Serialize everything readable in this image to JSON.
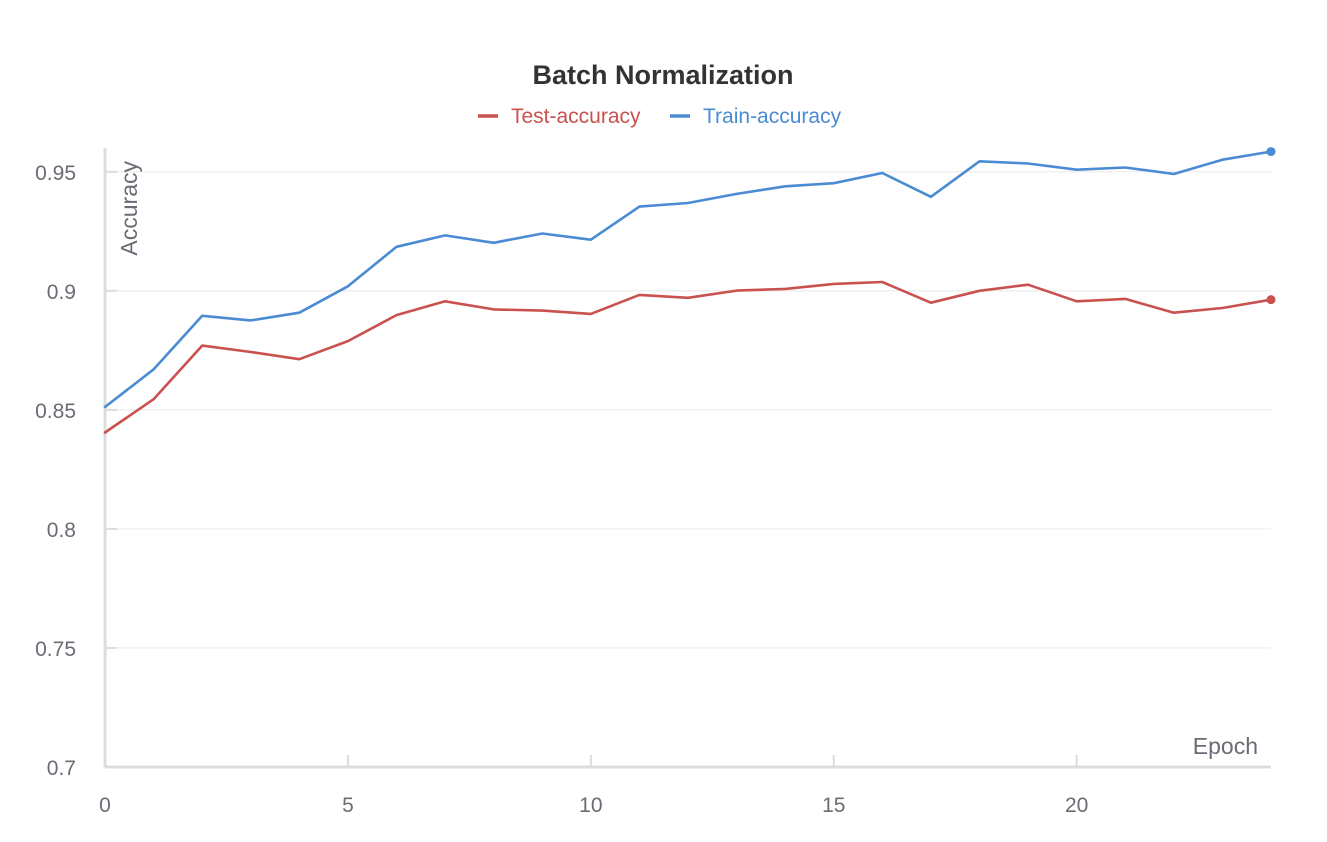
{
  "chart_data": {
    "type": "line",
    "title": "Batch Normalization",
    "xlabel": "Epoch",
    "ylabel": "Accuracy",
    "xlim": [
      0,
      24
    ],
    "ylim": [
      0.7,
      0.96
    ],
    "x_ticks": [
      0,
      5,
      10,
      15,
      20
    ],
    "y_ticks": [
      0.7,
      0.75,
      0.8,
      0.85,
      0.9,
      0.95
    ],
    "x_tick_labels": [
      "0",
      "5",
      "10",
      "15",
      "20"
    ],
    "y_tick_labels": [
      "0.7",
      "0.75",
      "0.8",
      "0.85",
      "0.9",
      "0.95"
    ],
    "grid": true,
    "legend_position": "top-center",
    "x": [
      0,
      1,
      2,
      3,
      4,
      5,
      6,
      7,
      8,
      9,
      10,
      11,
      12,
      13,
      14,
      15,
      16,
      17,
      18,
      19,
      20,
      21,
      22,
      23,
      24
    ],
    "series": [
      {
        "name": "Test-accuracy",
        "color": "#c9524f",
        "values": [
          0.8405,
          0.8545,
          0.877,
          0.8743,
          0.8713,
          0.8789,
          0.8898,
          0.8956,
          0.8922,
          0.8917,
          0.8903,
          0.8983,
          0.8971,
          0.9001,
          0.9008,
          0.9029,
          0.9037,
          0.895,
          0.9,
          0.9026,
          0.8956,
          0.8966,
          0.8908,
          0.8928,
          0.8963
        ]
      },
      {
        "name": "Train-accuracy",
        "color": "#4a8bd3",
        "values": [
          0.8512,
          0.867,
          0.8895,
          0.8876,
          0.8908,
          0.9019,
          0.9185,
          0.9233,
          0.9202,
          0.9241,
          0.9215,
          0.9354,
          0.9369,
          0.9407,
          0.9439,
          0.9452,
          0.9495,
          0.9395,
          0.9544,
          0.9535,
          0.9509,
          0.9518,
          0.9491,
          0.9551,
          0.9585
        ]
      }
    ]
  }
}
